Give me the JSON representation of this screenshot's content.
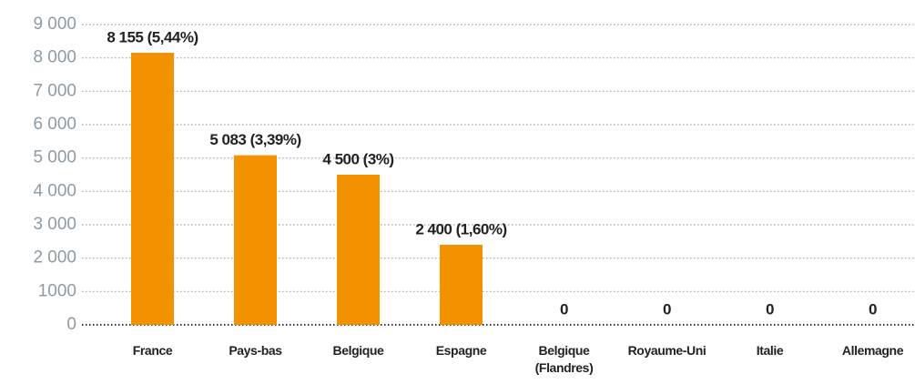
{
  "chart_data": {
    "type": "bar",
    "categories": [
      "France",
      "Pays-bas",
      "Belgique",
      "Espagne",
      "Belgique (Flandres)",
      "Royaume-Uni",
      "Italie",
      "Allemagne"
    ],
    "values": [
      8155,
      5083,
      4500,
      2400,
      0,
      0,
      0,
      0
    ],
    "value_labels": [
      "8 155 (5,44%)",
      "5 083 (3,39%)",
      "4 500 (3%)",
      "2 400 (1,60%)",
      "0",
      "0",
      "0",
      "0"
    ],
    "color": "#f39200",
    "ylim": [
      0,
      9000
    ],
    "yticks": [
      0,
      1000,
      {
        "value": 2000,
        "label": "2 000"
      },
      {
        "value": 3000,
        "label": "3 000"
      },
      {
        "value": 4000,
        "label": "4 000"
      },
      {
        "value": 5000,
        "label": "5 000"
      },
      {
        "value": 6000,
        "label": "6 000"
      },
      {
        "value": 7000,
        "label": "7 000"
      },
      {
        "value": 8000,
        "label": "8 000"
      },
      {
        "value": 9000,
        "label": "9 000"
      }
    ],
    "grid": true
  }
}
